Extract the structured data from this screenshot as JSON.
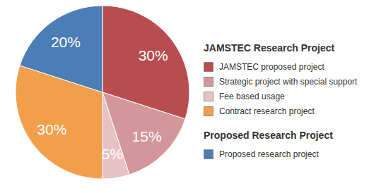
{
  "chart_data": {
    "type": "pie",
    "categories": [
      "JAMSTEC proposed project",
      "Strategic project with special support",
      "Fee based usage",
      "Contract research project",
      "Proposed research project"
    ],
    "values": [
      30,
      15,
      5,
      30,
      20
    ],
    "value_labels": [
      "30%",
      "15%",
      "5%",
      "30%",
      "20%"
    ],
    "data_labels": true,
    "colors": [
      "#b84d4f",
      "#d3969b",
      "#e8c1c5",
      "#f29f4c",
      "#4b7db6"
    ],
    "legend": "right",
    "legend_groups": [
      {
        "name": "JAMSTEC Research Project",
        "categories": [
          "JAMSTEC proposed project",
          "Strategic project with special support",
          "Fee based usage",
          "Contract research project"
        ]
      },
      {
        "name": "Proposed Research Project",
        "categories": [
          "Proposed research project"
        ]
      }
    ]
  }
}
